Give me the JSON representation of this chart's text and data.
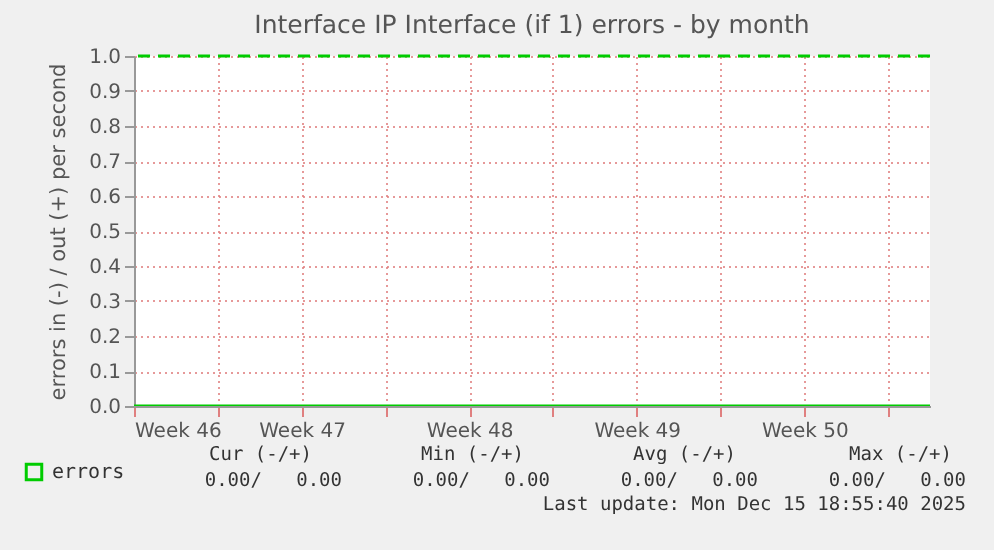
{
  "chart_data": {
    "type": "line",
    "title": "Interface IP Interface (if 1) errors - by month",
    "ylabel": "errors in (-) / out (+) per second",
    "x": [
      "2025-11-13T12:00",
      "2025-12-16T18:00"
    ],
    "series": [
      {
        "name": "errors",
        "color": "#00cc00",
        "values": [
          0,
          0
        ]
      }
    ],
    "xlim": [
      "2025-11-13T12:00",
      "2025-12-16T18:00"
    ],
    "xticks": [
      {
        "value": "2025-11-13T12:00",
        "label": "Week 46"
      },
      {
        "value": "2025-11-17",
        "label": null
      },
      {
        "value": "2025-11-20T12:00",
        "label": "Week 47"
      },
      {
        "value": "2025-11-24",
        "label": null
      },
      {
        "value": "2025-11-27T12:00",
        "label": "Week 48"
      },
      {
        "value": "2025-12-01",
        "label": null
      },
      {
        "value": "2025-12-04T12:00",
        "label": "Week 49"
      },
      {
        "value": "2025-12-08",
        "label": null
      },
      {
        "value": "2025-12-11T12:00",
        "label": "Week 50"
      },
      {
        "value": "2025-12-15",
        "label": null
      }
    ],
    "ylim": [
      0,
      1
    ],
    "yticks": [
      {
        "value": 0,
        "label": "0.0"
      },
      {
        "value": 0.1,
        "label": "0.1"
      },
      {
        "value": 0.2,
        "label": "0.2"
      },
      {
        "value": 0.3,
        "label": "0.3"
      },
      {
        "value": 0.4,
        "label": "0.4"
      },
      {
        "value": 0.5,
        "label": "0.5"
      },
      {
        "value": 0.6,
        "label": "0.6"
      },
      {
        "value": 0.7,
        "label": "0.7"
      },
      {
        "value": 0.8,
        "label": "0.8"
      },
      {
        "value": 0.9,
        "label": "0.9"
      },
      {
        "value": 1,
        "label": "1.0"
      }
    ],
    "ref_lines": [
      {
        "axis": "y",
        "value": 1,
        "label": null,
        "color": "#00cc00",
        "line_style": "dashed"
      }
    ],
    "grid": true,
    "legend": "bottom",
    "marker": "none",
    "line_style": "solid",
    "annotations": [
      "Cur (-/+)",
      "Min (-/+)",
      "Avg (-/+)",
      "Max (-/+)",
      "0.00/   0.00",
      "0.00/   0.00",
      "0.00/   0.00",
      "0.00/   0.00",
      "Last update: Mon Dec 15 18:55:40 2025"
    ]
  }
}
